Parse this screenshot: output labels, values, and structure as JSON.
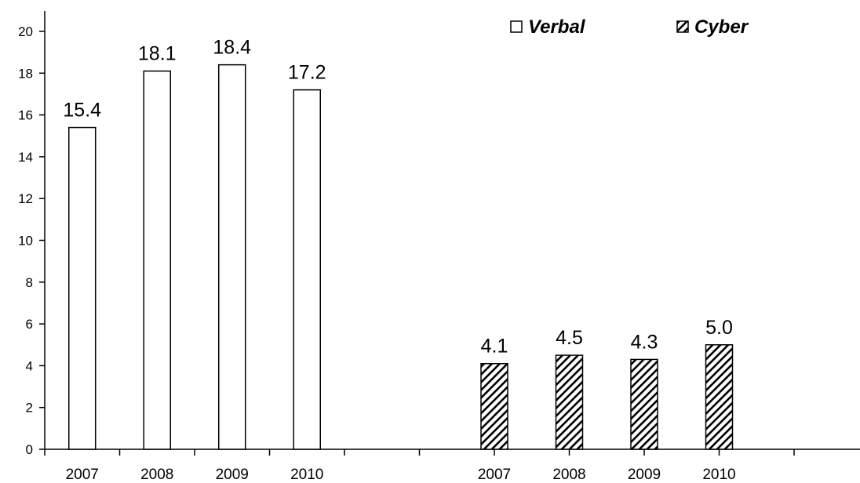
{
  "chart_data": {
    "type": "bar",
    "ylim": [
      0,
      20
    ],
    "yticks": [
      0,
      2,
      4,
      6,
      8,
      10,
      12,
      14,
      16,
      18,
      20
    ],
    "grid": false,
    "legend_position": "top-right",
    "series": [
      {
        "name": "Verbal",
        "pattern": "solid",
        "fill": "#ffffff",
        "categories": [
          "2007",
          "2008",
          "2009",
          "2010"
        ],
        "values": [
          15.4,
          18.1,
          18.4,
          17.2
        ],
        "labels": [
          "15.4",
          "18.1",
          "18.4",
          "17.2"
        ]
      },
      {
        "name": "Cyber",
        "pattern": "hatched",
        "fill": "#000000",
        "categories": [
          "2007",
          "2008",
          "2009",
          "2010"
        ],
        "values": [
          4.1,
          4.5,
          4.3,
          5.0
        ],
        "labels": [
          "4.1",
          "4.5",
          "4.3",
          "5.0"
        ]
      }
    ]
  }
}
